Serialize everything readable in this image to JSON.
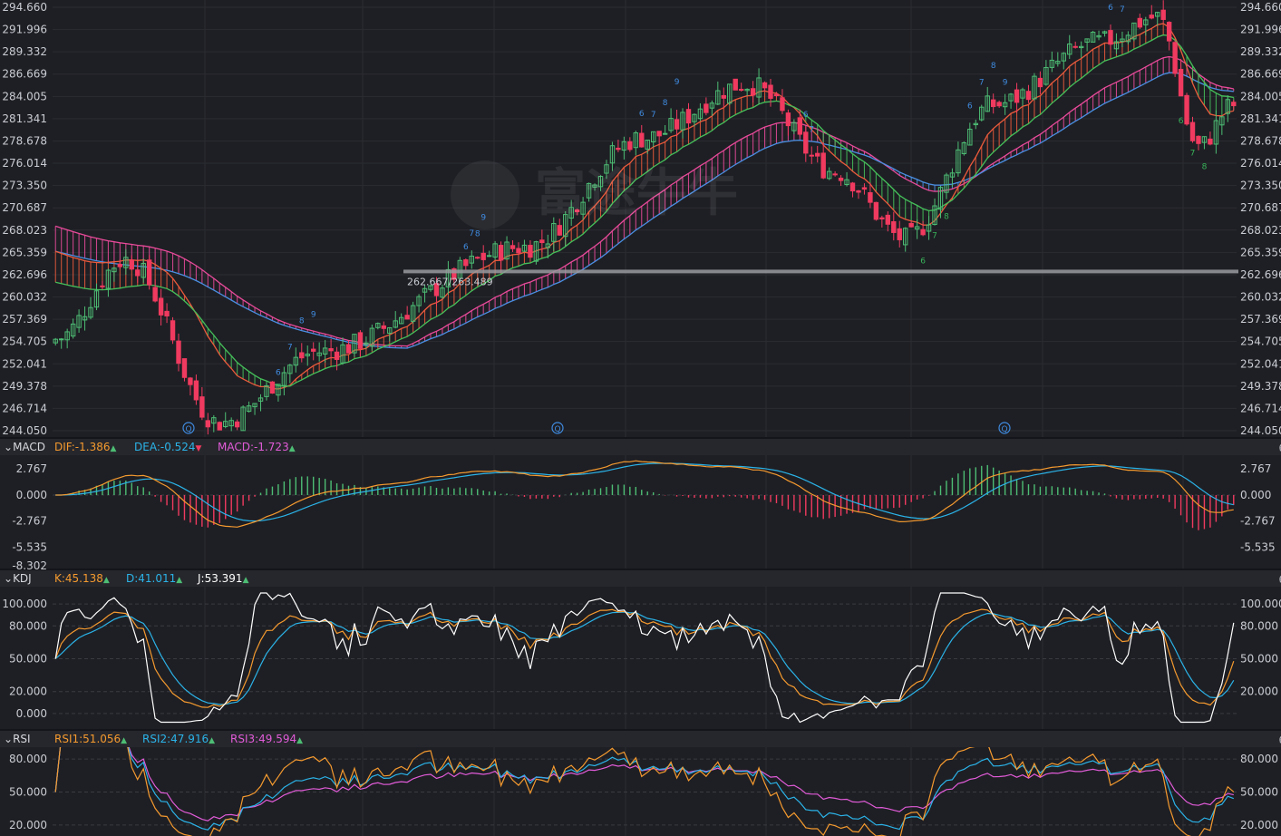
{
  "colors": {
    "bg": "#1e1f24",
    "grid": "#2b2c32",
    "up": "#4dbd74",
    "down": "#f03a5f",
    "band_blue": "#4a8fe3",
    "band_green": "#45c05a",
    "band_red": "#ec5a3c",
    "band_pink": "#e84a9a",
    "orange": "#f59a2f",
    "cyan": "#2bb3e8",
    "magenta": "#e15bd8",
    "white": "#ffffff",
    "label_seq": "#3f8be0",
    "label_seq_green": "#38b35a"
  },
  "main": {
    "y_ticks": [
      "294.660",
      "291.996",
      "289.332",
      "286.669",
      "284.005",
      "281.341",
      "278.678",
      "276.014",
      "273.350",
      "270.687",
      "268.023",
      "265.359",
      "262.696",
      "260.032",
      "257.369",
      "254.705",
      "252.041",
      "249.378",
      "246.714",
      "244.050"
    ],
    "hline_label": "262.667/263.489",
    "watermark": "富途牛牛",
    "event_markers": [
      "Q",
      "Q",
      "Q"
    ]
  },
  "macd": {
    "name": "MACD",
    "dif": "DIF:-1.386",
    "dea": "DEA:-0.524",
    "macd": "MACD:-1.723",
    "dif_arrow": "▲",
    "dea_arrow": "▼",
    "macd_arrow": "▲",
    "y_ticks": [
      "2.767",
      "0.000",
      "-2.767",
      "-5.535",
      "-8.302"
    ]
  },
  "kdj": {
    "name": "KDJ",
    "k": "K:45.138",
    "d": "D:41.011",
    "j": "J:53.391",
    "k_arrow": "▲",
    "d_arrow": "▲",
    "j_arrow": "▲",
    "y_ticks": [
      "100.000",
      "80.000",
      "50.000",
      "20.000",
      "0.000"
    ]
  },
  "rsi": {
    "name": "RSI",
    "rsi1": "RSI1:51.056",
    "rsi2": "RSI2:47.916",
    "rsi3": "RSI3:49.594",
    "rsi1_arrow": "▲",
    "rsi2_arrow": "▲",
    "rsi3_arrow": "▲",
    "y_ticks": [
      "80.000",
      "50.000",
      "20.000"
    ]
  },
  "toolbar": {
    "expand_icon": "⤢",
    "close_icon": "⨂",
    "gear_icon": "⚙"
  },
  "chart_data": [
    {
      "type": "candlestick",
      "title": "",
      "ylim": [
        244.05,
        294.66
      ],
      "key_points": [
        {
          "x": 0,
          "close": 255.0
        },
        {
          "x": 12,
          "close": 264.5
        },
        {
          "x": 28,
          "close": 245.0
        },
        {
          "x": 45,
          "close": 253.5
        },
        {
          "x": 80,
          "close": 266.0
        },
        {
          "x": 100,
          "close": 279.0
        },
        {
          "x": 118,
          "close": 285.5
        },
        {
          "x": 133,
          "close": 275.0
        },
        {
          "x": 145,
          "close": 267.0
        },
        {
          "x": 160,
          "close": 283.0
        },
        {
          "x": 178,
          "close": 290.5
        },
        {
          "x": 188,
          "close": 293.5
        },
        {
          "x": 195,
          "close": 278.0
        },
        {
          "x": 201,
          "close": 283.0
        }
      ],
      "overlays": [
        "short_ma_band",
        "long_ma_band"
      ],
      "horizontal_line": [
        262.667,
        263.489
      ],
      "sequence_labels": [
        "6",
        "7",
        "8",
        "9",
        "6",
        "7",
        "8",
        "9",
        "6",
        "7",
        "8",
        "9",
        "6",
        "7",
        "6",
        "7",
        "8",
        "6",
        "7",
        "8",
        "9",
        "6",
        "7",
        "6",
        "7",
        "8"
      ]
    },
    {
      "type": "macd",
      "series": [
        {
          "name": "DIF"
        },
        {
          "name": "DEA"
        },
        {
          "name": "MACD"
        }
      ],
      "ylim": [
        -8.302,
        2.767
      ],
      "last_values": {
        "DIF": -1.386,
        "DEA": -0.524,
        "MACD": -1.723
      }
    },
    {
      "type": "kdj",
      "series": [
        {
          "name": "K"
        },
        {
          "name": "D"
        },
        {
          "name": "J"
        }
      ],
      "ylim": [
        0,
        100
      ],
      "last_values": {
        "K": 45.138,
        "D": 41.011,
        "J": 53.391
      }
    },
    {
      "type": "rsi",
      "series": [
        {
          "name": "RSI1"
        },
        {
          "name": "RSI2"
        },
        {
          "name": "RSI3"
        }
      ],
      "ylim": [
        20,
        80
      ],
      "last_values": {
        "RSI1": 51.056,
        "RSI2": 47.916,
        "RSI3": 49.594
      }
    }
  ]
}
